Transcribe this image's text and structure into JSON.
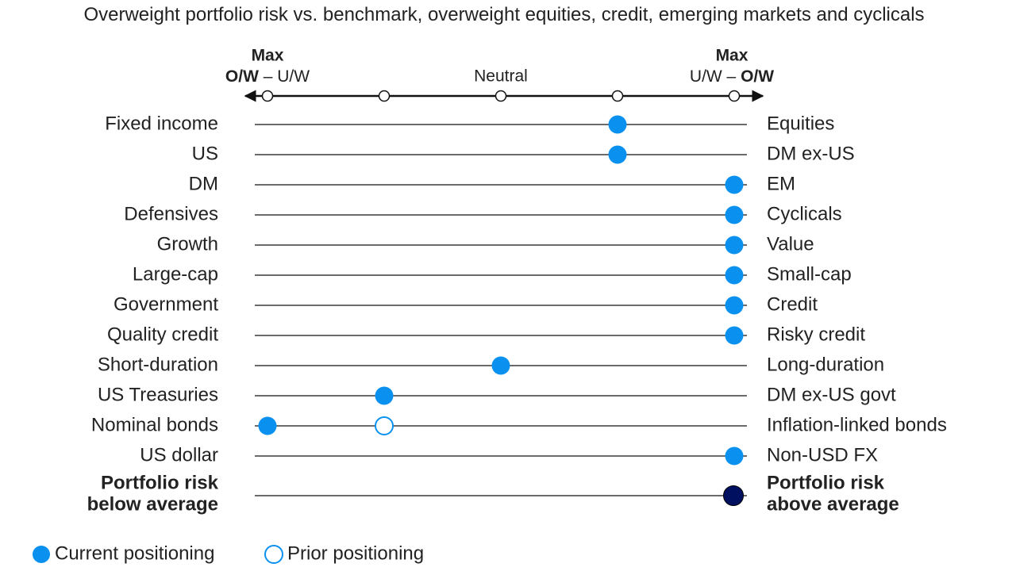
{
  "colors": {
    "current": "#0a91f0",
    "risk_marker": "#001060",
    "line": "#111111",
    "text": "#222222",
    "prior_fill": "#ffffff"
  },
  "chart_data": {
    "type": "dot-scale",
    "title": "Overweight portfolio risk vs. benchmark, overweight equities, credit, emerging markets and cyclicals",
    "scale": {
      "positions": [
        -2,
        -1,
        0,
        1,
        2
      ],
      "left_header": {
        "top": "Max",
        "bold": "O/W",
        "sep": " – ",
        "regular": "U/W"
      },
      "center_header": "Neutral",
      "right_header": {
        "top": "Max",
        "regular": "U/W",
        "sep": " – ",
        "bold": "O/W"
      }
    },
    "rows": [
      {
        "left": "Fixed income",
        "right": "Equities",
        "current": 1
      },
      {
        "left": "US",
        "right": "DM ex-US",
        "current": 1
      },
      {
        "left": "DM",
        "right": "EM",
        "current": 2
      },
      {
        "left": "Defensives",
        "right": "Cyclicals",
        "current": 2
      },
      {
        "left": "Growth",
        "right": "Value",
        "current": 2
      },
      {
        "left": "Large-cap",
        "right": "Small-cap",
        "current": 2
      },
      {
        "left": "Government",
        "right": "Credit",
        "current": 2
      },
      {
        "left": "Quality credit",
        "right": "Risky credit",
        "current": 2
      },
      {
        "left": "Short-duration",
        "right": "Long-duration",
        "current": 0
      },
      {
        "left": "US Treasuries",
        "right": "DM ex-US govt",
        "current": -1
      },
      {
        "left": "Nominal bonds",
        "right": "Inflation-linked bonds",
        "current": -2,
        "prior": -1
      },
      {
        "left": "US dollar",
        "right": "Non-USD FX",
        "current": 2
      },
      {
        "left_lines": [
          "Portfolio risk",
          "below average"
        ],
        "right_lines": [
          "Portfolio risk",
          "above average"
        ],
        "current": 2,
        "bold": true,
        "marker": "risk"
      }
    ],
    "legend": [
      {
        "label": "Current positioning",
        "style": "filled"
      },
      {
        "label": "Prior positioning",
        "style": "hollow"
      }
    ]
  }
}
